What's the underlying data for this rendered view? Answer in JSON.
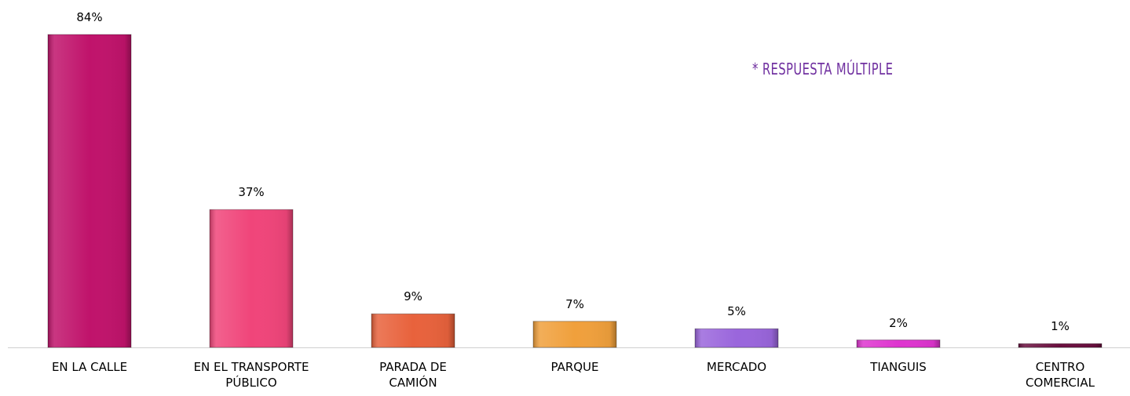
{
  "chart_data": {
    "type": "bar",
    "annotation": "* RESPUESTA MÚLTIPLE",
    "categories": [
      "EN LA CALLE",
      "EN EL TRANSPORTE PÚBLICO",
      "PARADA DE CAMIÓN",
      "PARQUE",
      "MERCADO",
      "TIANGUIS",
      "CENTRO COMERCIAL"
    ],
    "values": [
      84,
      37,
      9,
      7,
      5,
      2,
      1
    ],
    "value_labels": [
      "84%",
      "37%",
      "9%",
      "7%",
      "5%",
      "2%",
      "1%"
    ],
    "colors": [
      "#c0136b",
      "#f0457a",
      "#e8623c",
      "#f0a03c",
      "#9a66dc",
      "#de35cf",
      "#6b0f3f"
    ]
  }
}
